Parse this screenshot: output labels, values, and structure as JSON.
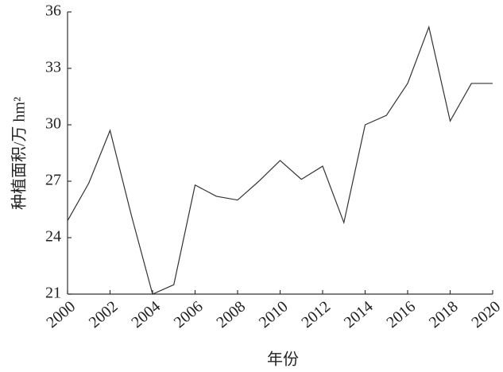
{
  "chart_data": {
    "type": "line",
    "x_label": "年份",
    "y_label": "种植面积/万 hm²",
    "x": [
      2000,
      2001,
      2002,
      2003,
      2004,
      2005,
      2006,
      2007,
      2008,
      2009,
      2010,
      2011,
      2012,
      2013,
      2014,
      2015,
      2016,
      2017,
      2018,
      2019,
      2020
    ],
    "values": [
      24.9,
      26.9,
      29.7,
      25.2,
      21.0,
      21.5,
      26.8,
      26.2,
      26.0,
      27.0,
      28.1,
      27.1,
      27.8,
      24.8,
      30.0,
      30.5,
      32.2,
      35.2,
      30.2,
      32.2,
      32.2
    ],
    "color": "#333333",
    "xlim": [
      2000,
      2020
    ],
    "xticks": [
      2000,
      2002,
      2004,
      2006,
      2008,
      2010,
      2012,
      2014,
      2016,
      2018,
      2020
    ],
    "ylim": [
      21,
      36
    ],
    "yticks": [
      21,
      24,
      27,
      30,
      33,
      36
    ]
  }
}
